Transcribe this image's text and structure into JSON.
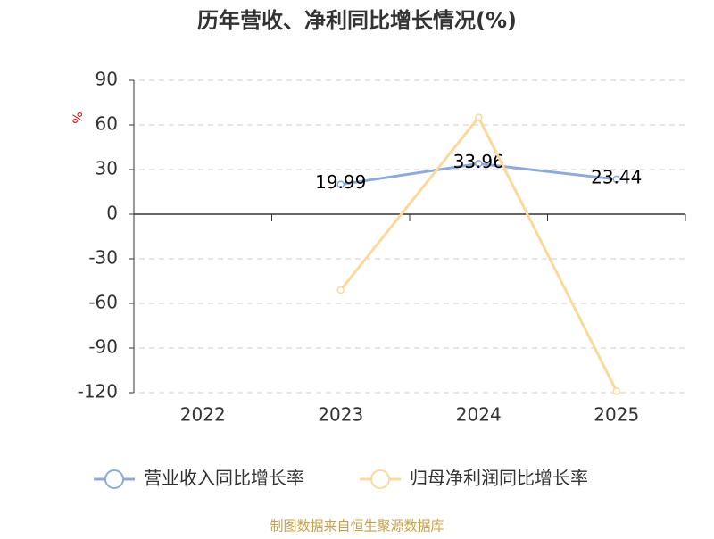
{
  "chart_data": {
    "type": "line",
    "title": "历年营收、净利同比增长情况(%)",
    "y_label": "%",
    "categories": [
      "2022",
      "2023",
      "2024",
      "2025"
    ],
    "series": [
      {
        "name": "营业收入同比增长率",
        "color": "#8eaadb",
        "values": [
          null,
          19.99,
          33.96,
          23.44
        ],
        "show_labels": true
      },
      {
        "name": "归母净利润同比增长率",
        "color": "#fbd99b",
        "values": [
          null,
          -51,
          65,
          -119
        ],
        "show_labels": false
      }
    ],
    "ylim": [
      -120,
      90
    ],
    "yticks": [
      -120,
      -90,
      -60,
      -30,
      0,
      30,
      60,
      90
    ],
    "grid": true,
    "source": "制图数据来自恒生聚源数据库"
  }
}
